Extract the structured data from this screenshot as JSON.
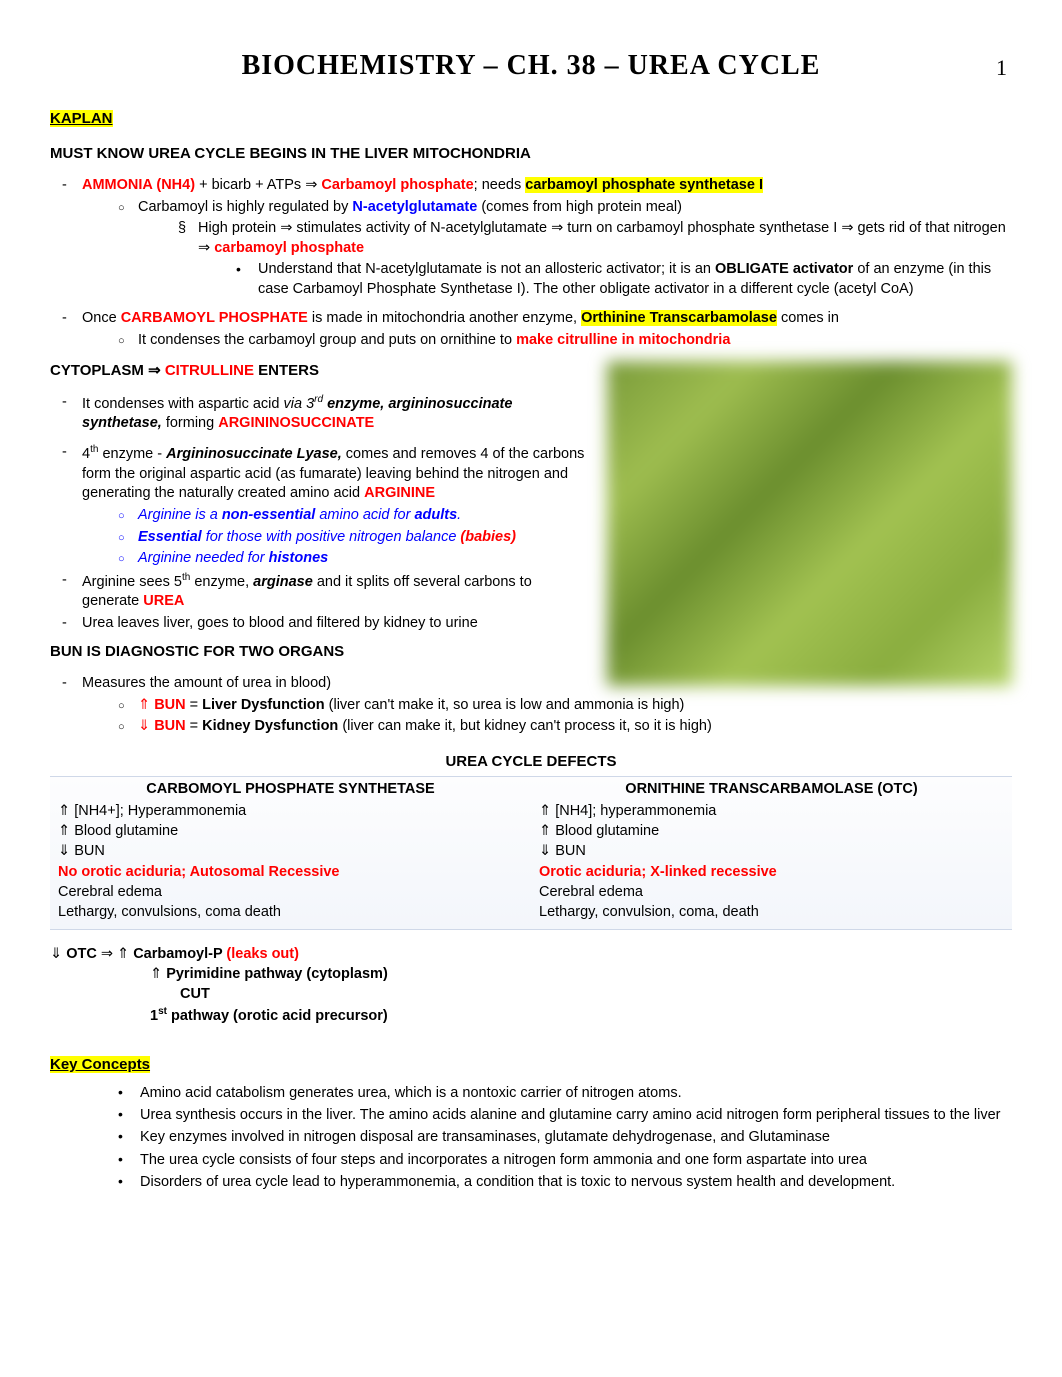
{
  "page_number": "1",
  "title": "BIOCHEMISTRY – CH. 38 – UREA CYCLE",
  "kaplan_label": "KAPLAN",
  "must_know": "MUST KNOW UREA CYCLE BEGINS IN THE LIVER MITOCHONDRIA",
  "ammonia": {
    "pre": "AMMONIA (NH4)",
    "mid1": " + bicarb + ATPs ",
    "cp": "Carbamoyl phosphate",
    "mid2": "; needs ",
    "cps": "carbamoyl phosphate synthetase I"
  },
  "carb_reg": {
    "pre": "Carbamoyl is highly regulated by ",
    "nag": "N-acetylglutamate",
    "post": " (comes from high protein meal)"
  },
  "high_protein": {
    "a": "High protein ",
    "b": " stimulates activity of N-acetylglutamate ",
    "c": " turn on carbamoyl phosphate synthetase I ",
    "d": " gets rid of that nitrogen ",
    "e": "carbamoyl phosphate"
  },
  "understand": {
    "a": "Understand that N-acetylglutamate is not an allosteric activator; it is an ",
    "b": "OBLIGATE activator",
    "c": " of an enzyme (in this case Carbamoyl Phosphate Synthetase I).  The other obligate activator in a different cycle (acetyl CoA)"
  },
  "once_cp": {
    "a": "Once ",
    "b": "CARBAMOYL PHOSPHATE",
    "c": " is made in mitochondria another enzyme, ",
    "d": "Orthinine Transcarbamolase",
    "e": " comes in"
  },
  "condenses": {
    "a": "It condenses the carbamoyl group and puts on ornithine to ",
    "b": "make citrulline in mitochondria"
  },
  "cytoplasm": {
    "a": "CYTOPLASM ",
    "b": " CITRULLINE",
    "c": " ENTERS"
  },
  "aspartic": {
    "a": "It condenses with aspartic acid ",
    "b": "via 3",
    "c": " enzyme, argininosuccinate synthetase,",
    "d": " forming ",
    "e": "ARGININOSUCCINATE"
  },
  "lyase": {
    "a": "4",
    "b": " enzyme - ",
    "c": "Argininosuccinate Lyase,",
    "d": " comes and removes 4 of the carbons form the original aspartic acid (as fumarate) leaving behind the nitrogen and generating the naturally created amino acid ",
    "e": "ARGININE"
  },
  "arg_notes": {
    "a1": "Arginine is a ",
    "a2": "non-essential",
    "a3": " amino acid for ",
    "a4": "adults",
    "b1": "Essential",
    "b2": " for those with positive nitrogen balance ",
    "b3": "(babies)",
    "c1": "Arginine needed for ",
    "c2": "histones"
  },
  "arginase": {
    "a": "Arginine sees 5",
    "b": " enzyme, ",
    "c": "arginase",
    "d": " and it splits off several carbons to generate ",
    "e": "UREA"
  },
  "urea_leaves": "Urea leaves liver, goes to blood and filtered by kidney to urine",
  "bun_head": "BUN IS DIAGNOSTIC FOR TWO ORGANS",
  "bun_measure": "Measures the amount of urea in blood)",
  "bun_up": {
    "a": "BUN",
    "b": " = ",
    "c": "Liver Dysfunction",
    "d": " (liver can't make it, so urea is low and ammonia is high)"
  },
  "bun_down": {
    "a": "BUN",
    "b": " = ",
    "c": "Kidney Dysfunction",
    "d": " (liver can make it, but kidney can't process it, so it is high)"
  },
  "defects_title": "UREA CYCLE DEFECTS",
  "defects": {
    "left_head": "CARBOMOYL PHOSPHATE SYNTHETASE",
    "right_head": "ORNITHINE TRANSCARBAMOLASE (OTC)",
    "l1": "[NH4+]; Hyperammonemia",
    "l2": "Blood glutamine",
    "l3": "BUN",
    "l4": "No orotic aciduria; Autosomal Recessive",
    "l5": "Cerebral edema",
    "l6": "Lethargy, convulsions, coma death",
    "r1": "[NH4]; hyperammonemia",
    "r2": "Blood glutamine",
    "r3": "BUN",
    "r4": "Orotic aciduria; X-linked recessive",
    "r5": "Cerebral edema",
    "r6": "Lethargy, convulsion, coma, death"
  },
  "otc": {
    "a": "OTC ",
    "b": " Carbamoyl-P ",
    "c": "(leaks out)",
    "d": "Pyrimidine pathway (cytoplasm)",
    "e": "CUT",
    "f": "1",
    "g": " pathway (orotic acid precursor)"
  },
  "key_concepts_head": "Key Concepts",
  "kc": {
    "1": "Amino acid catabolism generates urea, which is a nontoxic carrier of nitrogen atoms.",
    "2": "Urea synthesis occurs in the liver.  The amino acids alanine and glutamine carry amino acid nitrogen form peripheral tissues to the liver",
    "3": "Key enzymes involved in nitrogen disposal are transaminases, glutamate dehydrogenase, and Glutaminase",
    "4": "The urea cycle consists of four steps and incorporates a nitrogen form ammonia and one form aspartate into urea",
    "5": "Disorders of urea cycle lead to hyperammonemia, a condition that is toxic to nervous system health and development."
  },
  "colors": {
    "highlight": "#ffff00",
    "red": "#ff0000",
    "blue": "#0000ff",
    "diagram_bg": "#8aad3f"
  }
}
